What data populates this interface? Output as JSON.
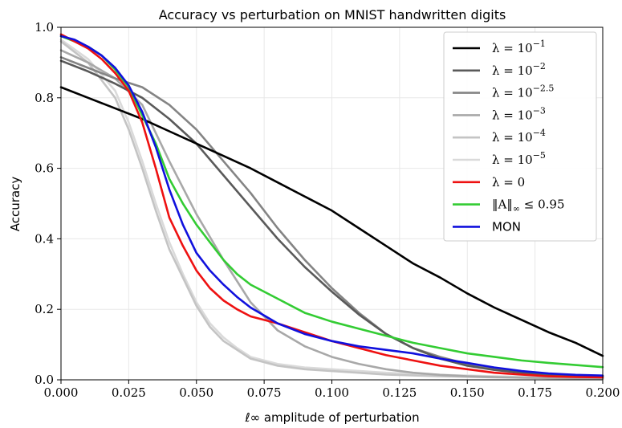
{
  "chart_data": {
    "type": "line",
    "title": "Accuracy vs perturbation on MNIST handwritten digits",
    "xlabel": "ℓ∞ amplitude of perturbation",
    "ylabel": "Accuracy",
    "xlim": [
      0.0,
      0.2
    ],
    "ylim": [
      0.0,
      1.0
    ],
    "grid": true,
    "legend_position": "top-right",
    "x_ticks": [
      "0.000",
      "0.025",
      "0.050",
      "0.075",
      "0.100",
      "0.125",
      "0.150",
      "0.175",
      "0.200"
    ],
    "y_ticks": [
      "0.0",
      "0.2",
      "0.4",
      "0.6",
      "0.8",
      "1.0"
    ],
    "series": [
      {
        "name": "λ = 10⁻¹",
        "color": "#000000",
        "x": [
          0,
          0.01,
          0.02,
          0.03,
          0.04,
          0.05,
          0.06,
          0.07,
          0.08,
          0.09,
          0.1,
          0.11,
          0.12,
          0.13,
          0.14,
          0.15,
          0.16,
          0.17,
          0.18,
          0.19,
          0.2
        ],
        "y": [
          0.83,
          0.8,
          0.77,
          0.74,
          0.705,
          0.67,
          0.635,
          0.6,
          0.56,
          0.52,
          0.48,
          0.43,
          0.38,
          0.33,
          0.29,
          0.245,
          0.205,
          0.17,
          0.135,
          0.105,
          0.068
        ]
      },
      {
        "name": "λ = 10⁻²",
        "color": "#5a5a5a",
        "x": [
          0,
          0.01,
          0.02,
          0.03,
          0.04,
          0.05,
          0.06,
          0.07,
          0.08,
          0.09,
          0.1,
          0.11,
          0.12,
          0.13,
          0.14,
          0.15,
          0.16,
          0.17,
          0.18,
          0.19,
          0.2
        ],
        "y": [
          0.905,
          0.875,
          0.84,
          0.8,
          0.74,
          0.67,
          0.58,
          0.49,
          0.4,
          0.32,
          0.25,
          0.185,
          0.13,
          0.09,
          0.06,
          0.04,
          0.028,
          0.02,
          0.015,
          0.012,
          0.01
        ]
      },
      {
        "name": "λ = 10⁻²·⁵",
        "color": "#848484",
        "x": [
          0,
          0.01,
          0.02,
          0.03,
          0.04,
          0.05,
          0.06,
          0.07,
          0.08,
          0.09,
          0.1,
          0.11,
          0.12,
          0.13,
          0.14,
          0.15,
          0.16,
          0.17,
          0.18,
          0.19,
          0.2
        ],
        "y": [
          0.915,
          0.885,
          0.855,
          0.83,
          0.78,
          0.71,
          0.62,
          0.53,
          0.43,
          0.34,
          0.26,
          0.19,
          0.13,
          0.09,
          0.065,
          0.045,
          0.03,
          0.022,
          0.016,
          0.012,
          0.01
        ]
      },
      {
        "name": "λ = 10⁻³",
        "color": "#a8a8a8",
        "x": [
          0,
          0.01,
          0.02,
          0.03,
          0.04,
          0.05,
          0.06,
          0.07,
          0.08,
          0.09,
          0.1,
          0.11,
          0.12,
          0.13,
          0.14,
          0.15,
          0.16,
          0.17,
          0.18,
          0.19,
          0.2
        ],
        "y": [
          0.935,
          0.9,
          0.855,
          0.78,
          0.62,
          0.47,
          0.34,
          0.22,
          0.14,
          0.095,
          0.065,
          0.045,
          0.03,
          0.02,
          0.014,
          0.01,
          0.008,
          0.006,
          0.005,
          0.004,
          0.003
        ]
      },
      {
        "name": "λ = 10⁻⁴",
        "color": "#c4c4c4",
        "x": [
          0,
          0.01,
          0.02,
          0.025,
          0.03,
          0.035,
          0.04,
          0.045,
          0.05,
          0.055,
          0.06,
          0.065,
          0.07,
          0.08,
          0.09,
          0.1,
          0.12,
          0.14,
          0.16,
          0.18,
          0.2
        ],
        "y": [
          0.96,
          0.9,
          0.8,
          0.71,
          0.6,
          0.48,
          0.37,
          0.29,
          0.21,
          0.15,
          0.11,
          0.085,
          0.06,
          0.04,
          0.03,
          0.025,
          0.015,
          0.01,
          0.007,
          0.005,
          0.004
        ]
      },
      {
        "name": "λ = 10⁻⁵",
        "color": "#dadada",
        "x": [
          0,
          0.01,
          0.02,
          0.025,
          0.03,
          0.035,
          0.04,
          0.045,
          0.05,
          0.055,
          0.06,
          0.065,
          0.07,
          0.08,
          0.09,
          0.1,
          0.12,
          0.14,
          0.16,
          0.18,
          0.2
        ],
        "y": [
          0.965,
          0.91,
          0.82,
          0.73,
          0.62,
          0.5,
          0.39,
          0.3,
          0.22,
          0.16,
          0.12,
          0.09,
          0.065,
          0.045,
          0.035,
          0.03,
          0.02,
          0.014,
          0.01,
          0.008,
          0.006
        ]
      },
      {
        "name": "λ = 0",
        "color": "#ee1111",
        "x": [
          0,
          0.005,
          0.01,
          0.015,
          0.02,
          0.025,
          0.03,
          0.035,
          0.04,
          0.045,
          0.05,
          0.055,
          0.06,
          0.065,
          0.07,
          0.08,
          0.09,
          0.1,
          0.11,
          0.12,
          0.13,
          0.14,
          0.15,
          0.16,
          0.17,
          0.18,
          0.19,
          0.2
        ],
        "y": [
          0.98,
          0.96,
          0.94,
          0.91,
          0.87,
          0.82,
          0.73,
          0.6,
          0.46,
          0.38,
          0.31,
          0.26,
          0.225,
          0.2,
          0.18,
          0.16,
          0.135,
          0.11,
          0.09,
          0.07,
          0.055,
          0.04,
          0.03,
          0.02,
          0.015,
          0.01,
          0.008,
          0.007
        ]
      },
      {
        "name": "‖A‖∞ ≤ 0.95",
        "color": "#33cc33",
        "x": [
          0,
          0.005,
          0.01,
          0.015,
          0.02,
          0.025,
          0.03,
          0.035,
          0.04,
          0.045,
          0.05,
          0.055,
          0.06,
          0.065,
          0.07,
          0.08,
          0.09,
          0.1,
          0.11,
          0.12,
          0.13,
          0.14,
          0.15,
          0.16,
          0.17,
          0.18,
          0.19,
          0.2
        ],
        "y": [
          0.975,
          0.96,
          0.945,
          0.92,
          0.88,
          0.83,
          0.75,
          0.67,
          0.57,
          0.5,
          0.44,
          0.39,
          0.34,
          0.3,
          0.27,
          0.23,
          0.19,
          0.165,
          0.145,
          0.125,
          0.105,
          0.09,
          0.075,
          0.065,
          0.055,
          0.048,
          0.042,
          0.036
        ]
      },
      {
        "name": "MON",
        "color": "#1010dd",
        "x": [
          0,
          0.005,
          0.01,
          0.015,
          0.02,
          0.025,
          0.03,
          0.035,
          0.04,
          0.045,
          0.05,
          0.055,
          0.06,
          0.065,
          0.07,
          0.08,
          0.09,
          0.1,
          0.11,
          0.12,
          0.13,
          0.14,
          0.15,
          0.16,
          0.17,
          0.18,
          0.19,
          0.2
        ],
        "y": [
          0.975,
          0.965,
          0.945,
          0.92,
          0.885,
          0.835,
          0.76,
          0.66,
          0.54,
          0.44,
          0.36,
          0.31,
          0.27,
          0.235,
          0.205,
          0.16,
          0.13,
          0.11,
          0.095,
          0.085,
          0.075,
          0.06,
          0.048,
          0.035,
          0.025,
          0.018,
          0.014,
          0.012
        ]
      }
    ],
    "legend": [
      {
        "kind": "math",
        "base": "λ = 10",
        "exp": "−1"
      },
      {
        "kind": "math",
        "base": "λ = 10",
        "exp": "−2"
      },
      {
        "kind": "math",
        "base": "λ = 10",
        "exp": "−2.5"
      },
      {
        "kind": "math",
        "base": "λ = 10",
        "exp": "−3"
      },
      {
        "kind": "math",
        "base": "λ = 10",
        "exp": "−4"
      },
      {
        "kind": "math",
        "base": "λ = 10",
        "exp": "−5"
      },
      {
        "kind": "math",
        "base": "λ = 0",
        "exp": ""
      },
      {
        "kind": "norm",
        "base": "‖A‖",
        "sub": "∞",
        "tail": " ≤ 0.95"
      },
      {
        "kind": "sans",
        "base": "MON",
        "exp": ""
      }
    ]
  }
}
